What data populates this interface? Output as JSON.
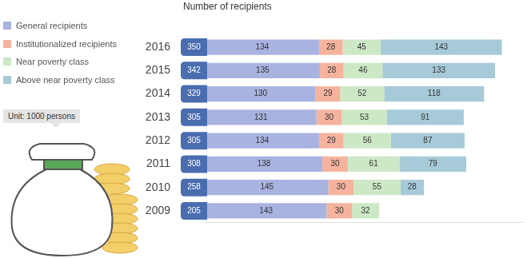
{
  "chart_data": {
    "type": "bar",
    "title": "Number of recipients",
    "annotations": [
      "Unit: 1000 persons"
    ],
    "orientation": "horizontal",
    "stacked": true,
    "data_labels": true,
    "grid": false,
    "legend": "upper left",
    "tick_labels": "y",
    "categories": [
      "2016",
      "2015",
      "2014",
      "2013",
      "2012",
      "2011",
      "2010",
      "2009"
    ],
    "totals": [
      350,
      342,
      329,
      305,
      305,
      308,
      258,
      205
    ],
    "totals_color": "#4a6db0",
    "series": [
      {
        "name": "General recipients",
        "color": "#a9b3e0",
        "values": [
          134,
          135,
          130,
          131,
          134,
          138,
          145,
          143
        ]
      },
      {
        "name": "Institutionalized recipients",
        "color": "#f5b39e",
        "values": [
          28,
          28,
          29,
          30,
          29,
          30,
          30,
          30
        ]
      },
      {
        "name": "Near poverty class",
        "color": "#cde8c5",
        "values": [
          45,
          46,
          52,
          53,
          56,
          61,
          55,
          32
        ]
      },
      {
        "name": "Above near poverty class",
        "color": "#a7cad8",
        "values": [
          143,
          133,
          118,
          91,
          87,
          79,
          28,
          null
        ]
      }
    ],
    "xlim": [
      0,
      375
    ]
  }
}
